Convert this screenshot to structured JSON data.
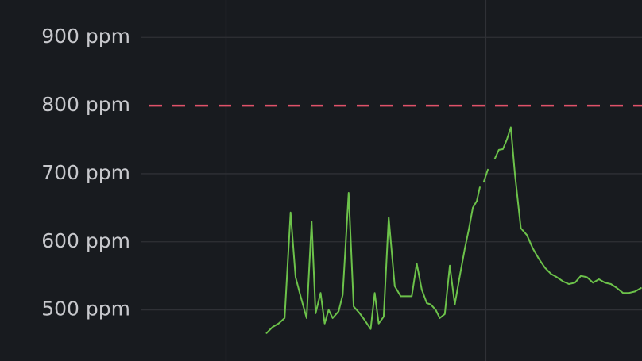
{
  "chart_data": {
    "type": "line",
    "unit": "ppm",
    "y_ticks": [
      "500 ppm",
      "600 ppm",
      "700 ppm",
      "800 ppm",
      "900 ppm"
    ],
    "y_tick_values": [
      500,
      600,
      700,
      800,
      900
    ],
    "ylim": [
      425,
      955
    ],
    "xlim": [
      0,
      100
    ],
    "x_grid": [
      16.9,
      68.8
    ],
    "grid": true,
    "threshold": {
      "value": 800,
      "color": "#e0526a",
      "style": "dashed"
    },
    "series": [
      {
        "color": "#6cc24a",
        "segments": [
          {
            "x": [
              25.0,
              26.2,
              27.4,
              28.6,
              29.8,
              30.8,
              31.8,
              33.0,
              34.0,
              34.8,
              35.8,
              36.6,
              37.4,
              38.2,
              39.4,
              40.2,
              41.4,
              42.4,
              43.6,
              44.6,
              45.8,
              46.6,
              47.4,
              48.4,
              49.4,
              50.6,
              51.8,
              53.0,
              54.0,
              55.0,
              56.0,
              57.0,
              57.8,
              58.8,
              59.6,
              60.6,
              61.6,
              62.6,
              63.6,
              64.6,
              65.4,
              66.2,
              67.0,
              67.6
            ],
            "y": [
              466,
              475,
              480,
              488,
              643,
              548,
              520,
              488,
              630,
              495,
              525,
              480,
              500,
              488,
              498,
              522,
              672,
              505,
              495,
              485,
              472,
              525,
              480,
              490,
              636,
              535,
              520,
              520,
              520,
              568,
              530,
              510,
              508,
              500,
              488,
              494,
              565,
              508,
              550,
              590,
              618,
              650,
              660,
              680
            ]
          },
          {
            "x": [
              68.4,
              69.2
            ],
            "y": [
              688,
              706
            ]
          },
          {
            "x": [
              70.6,
              71.4,
              72.2,
              73.0,
              73.8,
              74.6,
              75.8,
              77.0,
              78.2,
              79.4,
              80.6,
              81.8,
              83.0,
              84.2,
              85.4,
              86.6,
              87.8,
              89.0,
              90.2,
              91.4,
              92.6,
              93.8,
              95.0,
              96.2,
              97.4,
              98.6,
              99.8
            ],
            "y": [
              722,
              735,
              736,
              750,
              768,
              700,
              620,
              610,
              590,
              575,
              562,
              553,
              548,
              542,
              538,
              540,
              550,
              548,
              540,
              545,
              540,
              538,
              532,
              525,
              525,
              527,
              532
            ]
          }
        ]
      }
    ]
  }
}
